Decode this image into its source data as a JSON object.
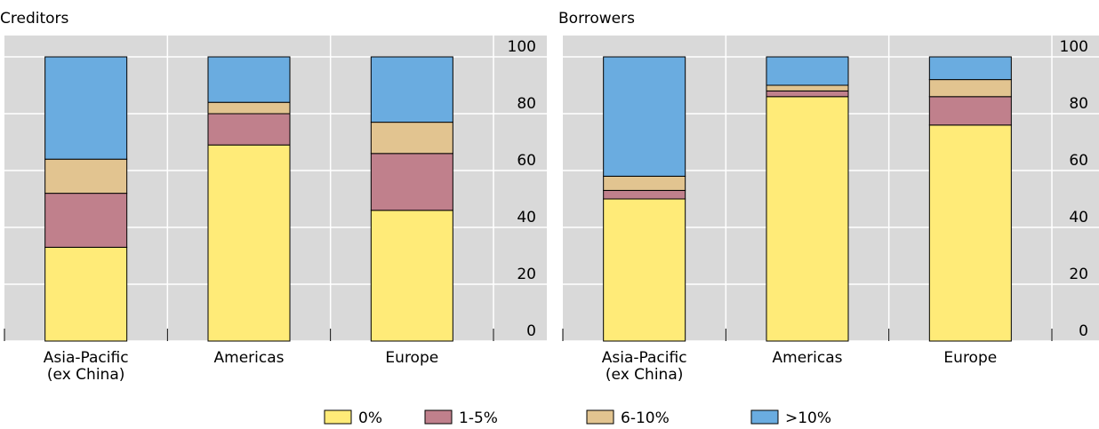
{
  "chart_data": [
    {
      "type": "stacked-bar",
      "title": "Creditors",
      "categories": [
        "Asia-Pacific\n(ex China)",
        "Americas",
        "Europe"
      ],
      "series": [
        {
          "name": "0%",
          "color": "#ffeb78",
          "values": [
            33,
            69,
            46
          ]
        },
        {
          "name": "1-5%",
          "color": "#c0808c",
          "values": [
            19,
            11,
            20
          ]
        },
        {
          "name": "6-10%",
          "color": "#e2c490",
          "values": [
            12,
            4,
            11
          ]
        },
        {
          "name": ">10%",
          "color": "#6aace0",
          "values": [
            36,
            16,
            23
          ]
        }
      ],
      "ylim": [
        0,
        100
      ],
      "yticks": [
        0,
        20,
        40,
        60,
        80,
        100
      ],
      "grid": true
    },
    {
      "type": "stacked-bar",
      "title": "Borrowers",
      "categories": [
        "Asia-Pacific\n(ex China)",
        "Americas",
        "Europe"
      ],
      "series": [
        {
          "values": [
            50,
            86,
            76
          ]
        },
        {
          "values": [
            3,
            2,
            10
          ]
        },
        {
          "values": [
            5,
            2,
            6
          ]
        },
        {
          "values": [
            42,
            10,
            8
          ]
        }
      ],
      "ylim": [
        0,
        100
      ],
      "yticks": [
        0,
        20,
        40,
        60,
        80,
        100
      ],
      "grid": true
    }
  ]
}
